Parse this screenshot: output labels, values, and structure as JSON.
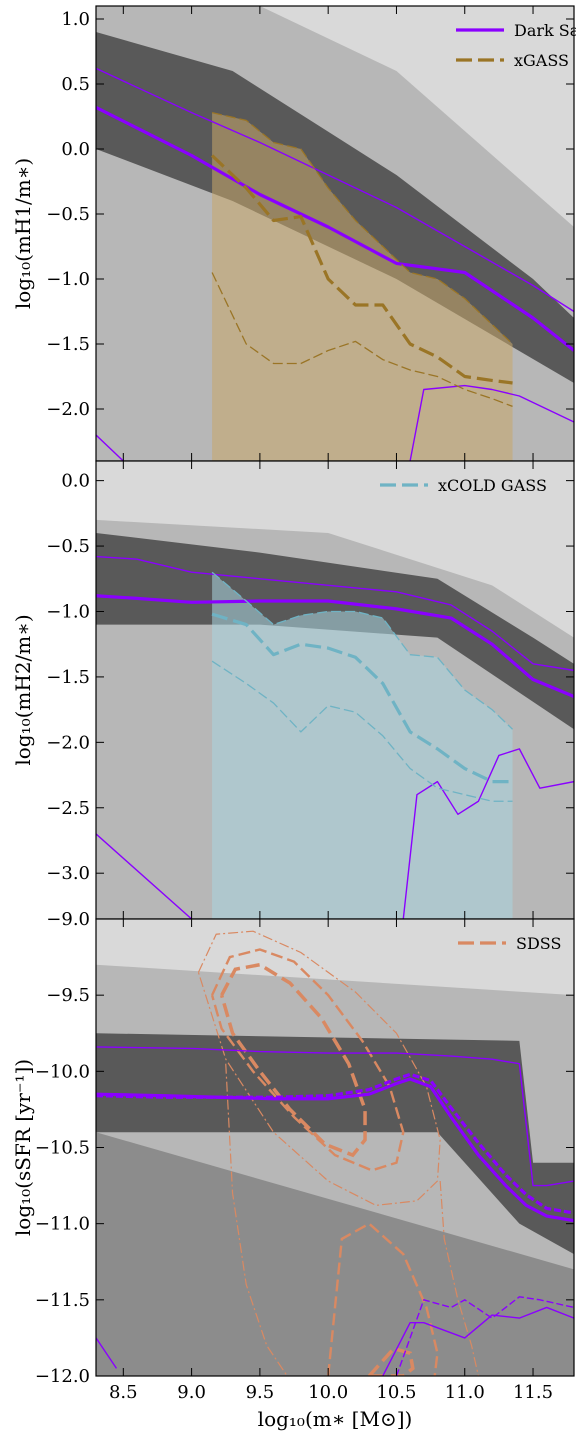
{
  "colors": {
    "dark_sage": "#8a00ff",
    "xgass": "#9a7526",
    "xgass_fill": "#c9a86a",
    "xcoldgass": "#6fb3c4",
    "xcoldgass_fill": "#a9d6e0",
    "sdss": "#d98962"
  },
  "xaxis": {
    "label": "log₁₀(m∗ [M⊙])",
    "range": [
      8.3,
      11.8
    ],
    "ticks": [
      "8.5",
      "9.0",
      "9.5",
      "10.0",
      "10.5",
      "11.0",
      "11.5"
    ],
    "tick_values": [
      8.5,
      9.0,
      9.5,
      10.0,
      10.5,
      11.0,
      11.5
    ]
  },
  "chart_data": [
    {
      "type": "line",
      "panel": "HI fraction",
      "ylabel": "log₁₀(mH1/m∗)",
      "ylim": [
        -2.4,
        1.1
      ],
      "yticks": [
        "1.0",
        "0.5",
        "0.0",
        "−0.5",
        "−1.0",
        "−1.5",
        "−2.0"
      ],
      "ytick_values": [
        1.0,
        0.5,
        0.0,
        -0.5,
        -1.0,
        -1.5,
        -2.0
      ],
      "legend": [
        {
          "label": "Dark Sage",
          "style": "solid",
          "color": "dark_sage"
        },
        {
          "label": "xGASS",
          "style": "dashed",
          "color": "xgass"
        }
      ],
      "series": [
        {
          "name": "Dark Sage",
          "style": "median",
          "x": [
            8.3,
            9.0,
            9.5,
            10.0,
            10.5,
            11.0,
            11.5,
            11.8
          ],
          "y": [
            0.32,
            -0.05,
            -0.35,
            -0.6,
            -0.88,
            -0.95,
            -1.3,
            -1.55
          ]
        },
        {
          "name": "Dark Sage",
          "style": "upper",
          "x": [
            8.3,
            9.0,
            9.5,
            10.0,
            10.5,
            11.0,
            11.5,
            11.8
          ],
          "y": [
            0.62,
            0.28,
            0.05,
            -0.2,
            -0.45,
            -0.75,
            -1.05,
            -1.25
          ]
        },
        {
          "name": "Dark Sage",
          "style": "lower",
          "x": [
            10.6,
            10.7,
            11.0,
            11.2,
            11.4,
            11.6,
            11.8
          ],
          "y": [
            -2.4,
            -1.85,
            -1.82,
            -1.85,
            -1.9,
            -2.0,
            -2.1
          ]
        },
        {
          "name": "Dark Sage",
          "style": "lower",
          "x": [
            8.3,
            8.5
          ],
          "y": [
            -2.2,
            -2.4
          ]
        },
        {
          "name": "xGASS",
          "style": "median",
          "x": [
            9.15,
            9.4,
            9.6,
            9.8,
            10.0,
            10.2,
            10.4,
            10.6,
            10.8,
            11.0,
            11.2,
            11.35
          ],
          "y": [
            -0.05,
            -0.3,
            -0.55,
            -0.52,
            -1.0,
            -1.2,
            -1.2,
            -1.5,
            -1.6,
            -1.75,
            -1.78,
            -1.8
          ]
        },
        {
          "name": "xGASS",
          "style": "upper",
          "x": [
            9.15,
            9.4,
            9.6,
            9.8,
            10.0,
            10.2,
            10.4,
            10.6,
            10.8,
            11.0,
            11.2,
            11.35
          ],
          "y": [
            0.28,
            0.22,
            0.05,
            0.0,
            -0.3,
            -0.55,
            -0.75,
            -0.95,
            -1.0,
            -1.15,
            -1.35,
            -1.5
          ]
        },
        {
          "name": "xGASS",
          "style": "lower",
          "x": [
            9.15,
            9.4,
            9.6,
            9.8,
            10.0,
            10.2,
            10.4,
            10.6,
            10.8,
            11.0,
            11.2,
            11.35
          ],
          "y": [
            -0.95,
            -1.5,
            -1.65,
            -1.65,
            -1.55,
            -1.48,
            -1.62,
            -1.7,
            -1.75,
            -1.85,
            -1.92,
            -1.98
          ]
        }
      ]
    },
    {
      "type": "line",
      "panel": "H2 fraction",
      "ylabel": "log₁₀(mH2/m∗)",
      "ylim": [
        -3.35,
        0.15
      ],
      "yticks": [
        "0.0",
        "−0.5",
        "−1.0",
        "−1.5",
        "−2.0",
        "−2.5",
        "−3.0"
      ],
      "ytick_values": [
        0.0,
        -0.5,
        -1.0,
        -1.5,
        -2.0,
        -2.5,
        -3.0
      ],
      "legend": [
        {
          "label": "xCOLD GASS",
          "style": "dashed",
          "color": "xcoldgass"
        }
      ],
      "series": [
        {
          "name": "Dark Sage",
          "style": "median",
          "x": [
            8.3,
            8.6,
            9.0,
            9.5,
            10.0,
            10.5,
            10.9,
            11.2,
            11.5,
            11.8
          ],
          "y": [
            -0.88,
            -0.9,
            -0.93,
            -0.92,
            -0.92,
            -0.98,
            -1.05,
            -1.25,
            -1.52,
            -1.65
          ]
        },
        {
          "name": "Dark Sage",
          "style": "upper",
          "x": [
            8.3,
            8.6,
            9.0,
            9.5,
            10.0,
            10.5,
            10.9,
            11.2,
            11.5,
            11.8
          ],
          "y": [
            -0.58,
            -0.6,
            -0.7,
            -0.75,
            -0.8,
            -0.85,
            -0.95,
            -1.15,
            -1.4,
            -1.45
          ]
        },
        {
          "name": "Dark Sage",
          "style": "lower",
          "x": [
            10.55,
            10.65,
            10.8,
            10.95,
            11.1,
            11.25,
            11.4,
            11.55,
            11.8
          ],
          "y": [
            -3.35,
            -2.4,
            -2.3,
            -2.55,
            -2.45,
            -2.1,
            -2.05,
            -2.35,
            -2.3
          ]
        },
        {
          "name": "Dark Sage",
          "style": "lower",
          "x": [
            8.3,
            9.0
          ],
          "y": [
            -2.7,
            -3.35
          ]
        },
        {
          "name": "xCOLD GASS",
          "style": "median",
          "x": [
            9.15,
            9.4,
            9.6,
            9.8,
            10.0,
            10.2,
            10.4,
            10.6,
            10.8,
            11.0,
            11.2,
            11.35
          ],
          "y": [
            -1.02,
            -1.1,
            -1.33,
            -1.25,
            -1.28,
            -1.35,
            -1.55,
            -1.92,
            -2.05,
            -2.2,
            -2.3,
            -2.3
          ]
        },
        {
          "name": "xCOLD GASS",
          "style": "upper",
          "x": [
            9.15,
            9.4,
            9.6,
            9.8,
            10.0,
            10.2,
            10.4,
            10.6,
            10.8,
            11.0,
            11.2,
            11.35
          ],
          "y": [
            -0.7,
            -0.92,
            -1.1,
            -1.03,
            -1.0,
            -1.0,
            -1.05,
            -1.33,
            -1.35,
            -1.6,
            -1.75,
            -1.9
          ]
        },
        {
          "name": "xCOLD GASS",
          "style": "lower",
          "x": [
            9.15,
            9.4,
            9.6,
            9.8,
            10.0,
            10.2,
            10.4,
            10.6,
            10.8,
            11.0,
            11.2,
            11.35
          ],
          "y": [
            -1.38,
            -1.55,
            -1.7,
            -1.92,
            -1.72,
            -1.77,
            -1.95,
            -2.2,
            -2.35,
            -2.4,
            -2.45,
            -2.45
          ]
        }
      ]
    },
    {
      "type": "line",
      "panel": "specific star formation rate",
      "ylabel": "log₁₀(sSFR [yr⁻¹])",
      "ylim": [
        -12.0,
        -9.0
      ],
      "yticks": [
        "−9.0",
        "−9.5",
        "−10.0",
        "−10.5",
        "−11.0",
        "−11.5",
        "−12.0"
      ],
      "ytick_values": [
        -9.0,
        -9.5,
        -10.0,
        -10.5,
        -11.0,
        -11.5,
        -12.0
      ],
      "legend": [
        {
          "label": "SDSS",
          "style": "dashed",
          "color": "sdss"
        }
      ],
      "series": [
        {
          "name": "Dark Sage",
          "style": "median",
          "x": [
            8.3,
            8.8,
            9.2,
            9.6,
            10.0,
            10.3,
            10.5,
            10.6,
            10.75,
            10.9,
            11.1,
            11.3,
            11.45,
            11.6,
            11.8
          ],
          "y": [
            -10.15,
            -10.16,
            -10.17,
            -10.18,
            -10.18,
            -10.15,
            -10.08,
            -10.05,
            -10.1,
            -10.3,
            -10.55,
            -10.75,
            -10.88,
            -10.95,
            -10.98
          ]
        },
        {
          "name": "Dark Sage",
          "style": "median",
          "x": [
            8.3,
            8.8,
            9.2,
            9.6,
            10.0,
            10.3,
            10.5,
            10.6,
            10.75,
            10.9,
            11.1,
            11.3,
            11.45,
            11.6,
            11.8
          ],
          "y": [
            -10.16,
            -10.17,
            -10.17,
            -10.17,
            -10.16,
            -10.12,
            -10.05,
            -10.02,
            -10.06,
            -10.24,
            -10.47,
            -10.68,
            -10.81,
            -10.9,
            -10.93
          ]
        },
        {
          "name": "Dark Sage",
          "style": "upper",
          "x": [
            8.3,
            9.0,
            9.5,
            10.0,
            10.5,
            10.9,
            11.2,
            11.4,
            11.5,
            11.6,
            11.8
          ],
          "y": [
            -9.84,
            -9.85,
            -9.87,
            -9.88,
            -9.88,
            -9.9,
            -9.92,
            -9.95,
            -10.75,
            -10.75,
            -10.72
          ]
        },
        {
          "name": "Dark Sage",
          "style": "lower",
          "x": [
            10.4,
            10.6,
            10.7,
            11.0,
            11.2,
            11.4,
            11.6,
            11.8
          ],
          "y": [
            -12.0,
            -11.65,
            -11.65,
            -11.75,
            -11.6,
            -11.62,
            -11.55,
            -11.62
          ]
        },
        {
          "name": "Dark Sage",
          "style": "lower",
          "x": [
            10.5,
            10.7,
            10.9,
            11.0,
            11.2,
            11.4,
            11.55,
            11.8
          ],
          "y": [
            -12.0,
            -11.5,
            -11.55,
            -11.5,
            -11.62,
            -11.48,
            -11.5,
            -11.55
          ]
        },
        {
          "name": "Dark Sage",
          "style": "lower",
          "x": [
            8.3,
            8.45
          ],
          "y": [
            -11.75,
            -11.95
          ]
        }
      ],
      "contours": [
        {
          "name": "SDSS",
          "level": "inner",
          "x": [
            9.22,
            9.32,
            9.5,
            9.72,
            9.95,
            10.15,
            10.27,
            10.27,
            10.18,
            9.98,
            9.72,
            9.5,
            9.3,
            9.22
          ],
          "y": [
            -9.5,
            -9.33,
            -9.3,
            -9.42,
            -9.65,
            -9.95,
            -10.25,
            -10.45,
            -10.55,
            -10.48,
            -10.25,
            -10.0,
            -9.75,
            -9.5
          ]
        },
        {
          "name": "SDSS",
          "level": "middle",
          "x": [
            9.15,
            9.28,
            9.5,
            9.75,
            10.0,
            10.25,
            10.45,
            10.55,
            10.5,
            10.32,
            10.05,
            9.75,
            9.45,
            9.22,
            9.15
          ],
          "y": [
            -9.5,
            -9.25,
            -9.2,
            -9.28,
            -9.5,
            -9.8,
            -10.1,
            -10.4,
            -10.6,
            -10.65,
            -10.55,
            -10.3,
            -10.0,
            -9.72,
            -9.5
          ]
        },
        {
          "name": "SDSS",
          "level": "outer",
          "x": [
            9.05,
            9.18,
            9.45,
            9.8,
            10.2,
            10.5,
            10.72,
            10.82,
            10.8,
            10.65,
            10.35,
            10.0,
            9.6,
            9.25,
            9.05
          ],
          "y": [
            -9.35,
            -9.1,
            -9.08,
            -9.22,
            -9.48,
            -9.75,
            -10.1,
            -10.45,
            -10.72,
            -10.85,
            -10.88,
            -10.72,
            -10.4,
            -9.92,
            -9.35
          ]
        },
        {
          "name": "SDSS",
          "level": "quenched-inner",
          "x": [
            10.3,
            10.48,
            10.6,
            10.62,
            10.55,
            10.42,
            10.3
          ],
          "y": [
            -12.0,
            -11.82,
            -11.85,
            -11.95,
            -12.0,
            -12.0,
            -12.0
          ]
        },
        {
          "name": "SDSS",
          "level": "quenched-middle",
          "x": [
            10.0,
            10.1,
            10.3,
            10.55,
            10.72,
            10.8,
            10.78
          ],
          "y": [
            -12.0,
            -11.1,
            -11.0,
            -11.2,
            -11.55,
            -11.85,
            -12.0
          ]
        },
        {
          "name": "SDSS",
          "level": "outer-left",
          "x": [
            9.25,
            9.3,
            9.4,
            9.55,
            9.7
          ],
          "y": [
            -9.95,
            -10.8,
            -11.4,
            -11.8,
            -12.0
          ]
        },
        {
          "name": "SDSS",
          "level": "outer-right",
          "x": [
            10.82,
            10.85,
            10.95,
            11.05,
            11.1
          ],
          "y": [
            -10.72,
            -11.1,
            -11.5,
            -11.8,
            -12.0
          ]
        }
      ]
    }
  ]
}
